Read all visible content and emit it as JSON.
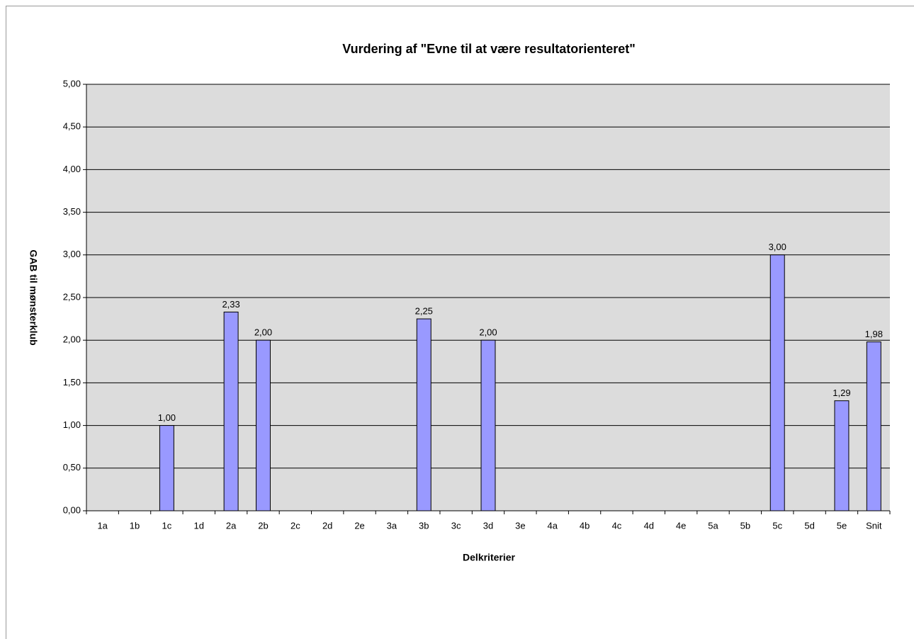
{
  "chart_data": {
    "type": "bar",
    "title": "Vurdering af \"Evne til at være resultatorienteret\"",
    "x_label": "Delkriterier",
    "y_label": "GAB til mønsterklub",
    "categories": [
      "1a",
      "1b",
      "1c",
      "1d",
      "2a",
      "2b",
      "2c",
      "2d",
      "2e",
      "3a",
      "3b",
      "3c",
      "3d",
      "3e",
      "4a",
      "4b",
      "4c",
      "4d",
      "4e",
      "5a",
      "5b",
      "5c",
      "5d",
      "5e",
      "Snit"
    ],
    "values": [
      null,
      null,
      1,
      null,
      2.33,
      2,
      null,
      null,
      null,
      null,
      2.25,
      null,
      2,
      null,
      null,
      null,
      null,
      null,
      null,
      null,
      null,
      3,
      null,
      1.29,
      1.98
    ],
    "value_labels": [
      null,
      null,
      "1,00",
      null,
      "2,33",
      "2,00",
      null,
      null,
      null,
      null,
      "2,25",
      null,
      "2,00",
      null,
      null,
      null,
      null,
      null,
      null,
      null,
      null,
      "3,00",
      null,
      "1,29",
      "1,98"
    ],
    "color": "#9999ff",
    "ylim": [
      0,
      5
    ],
    "yticks": [
      {
        "value": 0,
        "label": "0,00"
      },
      {
        "value": 0.5,
        "label": "0,50"
      },
      {
        "value": 1,
        "label": "1,00"
      },
      {
        "value": 1.5,
        "label": "1,50"
      },
      {
        "value": 2,
        "label": "2,00"
      },
      {
        "value": 2.5,
        "label": "2,50"
      },
      {
        "value": 3,
        "label": "3,00"
      },
      {
        "value": 3.5,
        "label": "3,50"
      },
      {
        "value": 4,
        "label": "4,00"
      },
      {
        "value": 4.5,
        "label": "4,50"
      },
      {
        "value": 5,
        "label": "5,00"
      }
    ],
    "grid": true
  }
}
